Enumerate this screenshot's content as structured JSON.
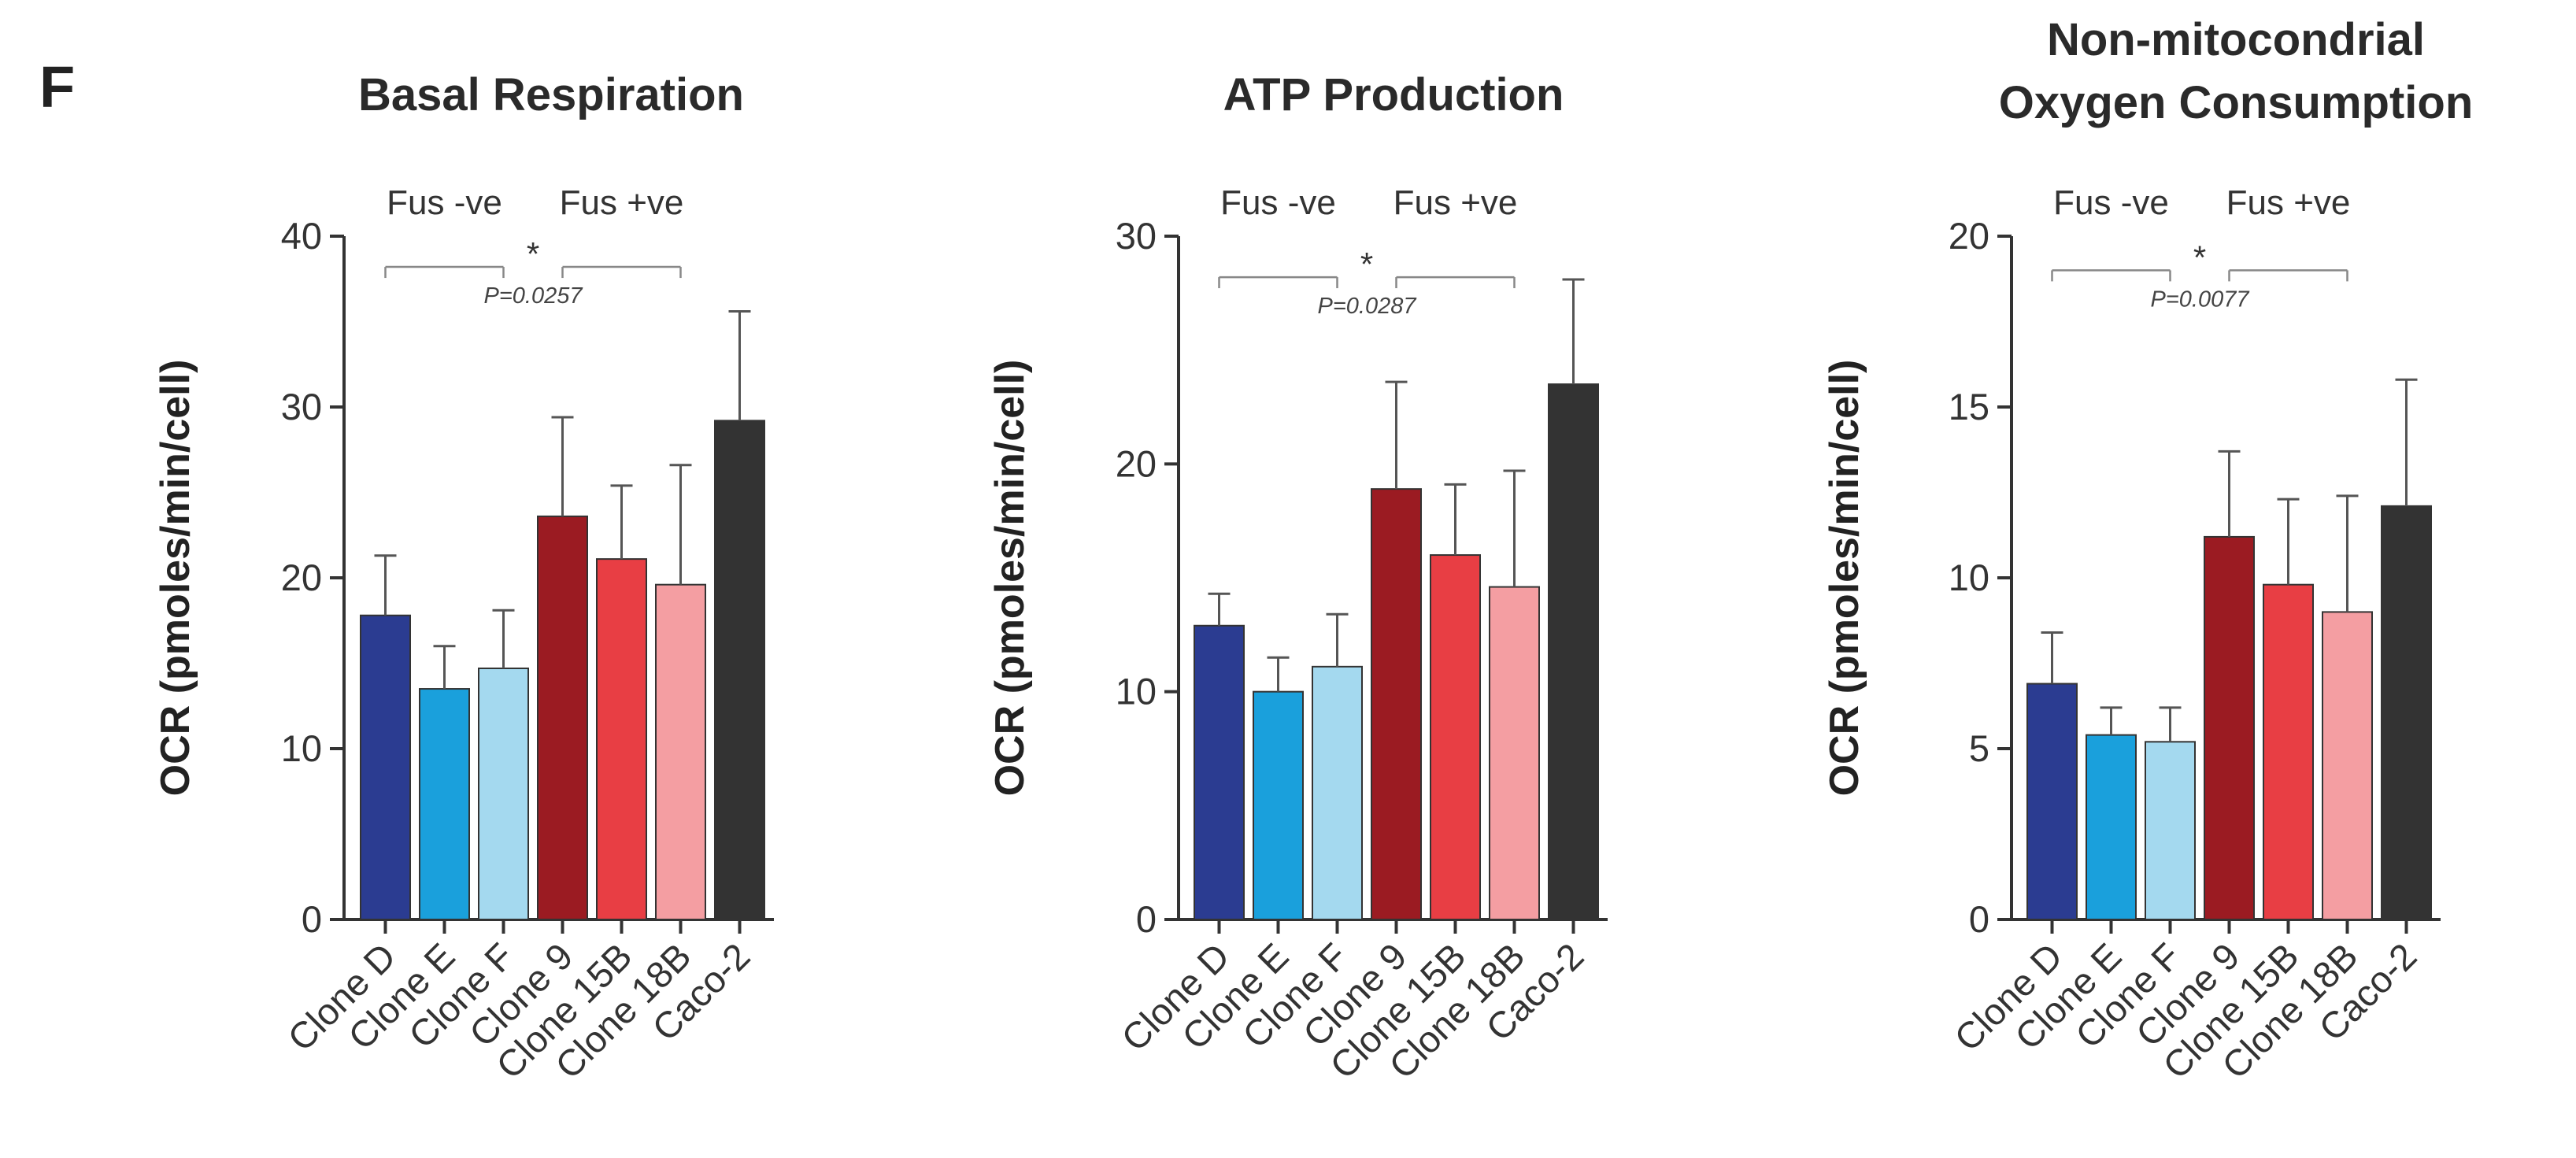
{
  "figure": {
    "panel_letter": "F"
  },
  "chart_data": [
    {
      "type": "bar",
      "title": [
        "Basal Respiration"
      ],
      "ylabel": "OCR (pmoles/min/cell)",
      "xlabel": "",
      "ylim": [
        0,
        40
      ],
      "yticks": [
        0,
        10,
        20,
        30,
        40
      ],
      "categories": [
        "Clone D",
        "Clone E",
        "Clone F",
        "Clone 9",
        "Clone 15B",
        "Clone 18B",
        "Caco-2"
      ],
      "values": [
        17.8,
        13.5,
        14.7,
        23.6,
        21.1,
        19.6,
        29.2
      ],
      "errors": [
        3.5,
        2.5,
        3.4,
        5.8,
        4.3,
        7.0,
        6.4
      ],
      "colors": [
        "#2b3c91",
        "#1aa0dc",
        "#a4d9ef",
        "#9b1b22",
        "#e83e44",
        "#f49ea2",
        "#333333"
      ],
      "groups": [
        {
          "label": "Fus -ve",
          "members": [
            0,
            1,
            2
          ]
        },
        {
          "label": "Fus +ve",
          "members": [
            3,
            4,
            5
          ]
        }
      ],
      "significance": {
        "marker": "*",
        "p_value": "P=0.0257",
        "bracket_y": 38.2
      }
    },
    {
      "type": "bar",
      "title": [
        "ATP Production"
      ],
      "ylabel": "OCR (pmoles/min/cell)",
      "xlabel": "",
      "ylim": [
        0,
        30
      ],
      "yticks": [
        0,
        10,
        20,
        30
      ],
      "categories": [
        "Clone D",
        "Clone E",
        "Clone F",
        "Clone 9",
        "Clone 15B",
        "Clone 18B",
        "Caco-2"
      ],
      "values": [
        12.9,
        10.0,
        11.1,
        18.9,
        16.0,
        14.6,
        23.5
      ],
      "errors": [
        1.4,
        1.5,
        2.3,
        4.7,
        3.1,
        5.1,
        4.6
      ],
      "colors": [
        "#2b3c91",
        "#1aa0dc",
        "#a4d9ef",
        "#9b1b22",
        "#e83e44",
        "#f49ea2",
        "#333333"
      ],
      "groups": [
        {
          "label": "Fus -ve",
          "members": [
            0,
            1,
            2
          ]
        },
        {
          "label": "Fus +ve",
          "members": [
            3,
            4,
            5
          ]
        }
      ],
      "significance": {
        "marker": "*",
        "p_value": "P=0.0287",
        "bracket_y": 28.2
      }
    },
    {
      "type": "bar",
      "title": [
        "Non-mitocondrial",
        "Oxygen Consumption"
      ],
      "ylabel": "OCR (pmoles/min/cell)",
      "xlabel": "",
      "ylim": [
        0,
        20
      ],
      "yticks": [
        0,
        5,
        10,
        15,
        20
      ],
      "categories": [
        "Clone D",
        "Clone E",
        "Clone F",
        "Clone 9",
        "Clone 15B",
        "Clone 18B",
        "Caco-2"
      ],
      "values": [
        6.9,
        5.4,
        5.2,
        11.2,
        9.8,
        9.0,
        12.1
      ],
      "errors": [
        1.5,
        0.8,
        1.0,
        2.5,
        2.5,
        3.4,
        3.7
      ],
      "colors": [
        "#2b3c91",
        "#1aa0dc",
        "#a4d9ef",
        "#9b1b22",
        "#e83e44",
        "#f49ea2",
        "#333333"
      ],
      "groups": [
        {
          "label": "Fus -ve",
          "members": [
            0,
            1,
            2
          ]
        },
        {
          "label": "Fus +ve",
          "members": [
            3,
            4,
            5
          ]
        }
      ],
      "significance": {
        "marker": "*",
        "p_value": "P=0.0077",
        "bracket_y": 19.0
      }
    }
  ]
}
